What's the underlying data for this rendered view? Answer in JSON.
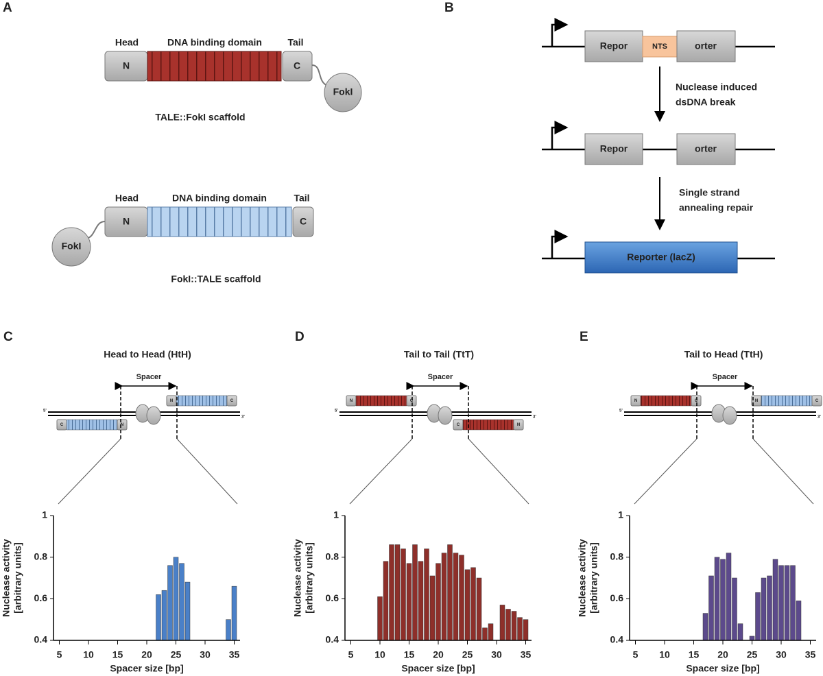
{
  "panel_a": {
    "letter": "A",
    "scaffolds": [
      {
        "head": "Head",
        "domain": "DNA binding domain",
        "tail": "Tail",
        "n": "N",
        "c": "C",
        "fok": "FokI",
        "caption": "TALE::FokI scaffold"
      },
      {
        "head": "Head",
        "domain": "DNA binding domain",
        "tail": "Tail",
        "n": "N",
        "c": "C",
        "fok": "FokI",
        "caption": "FokI::TALE scaffold"
      }
    ]
  },
  "panel_b": {
    "letter": "B",
    "steps": [
      {
        "left": "Repor",
        "middle": "NTS",
        "right": "orter"
      },
      {
        "left": "Repor",
        "right": "orter"
      },
      {
        "full": "Reporter (lacZ)"
      }
    ],
    "arrows": [
      [
        "Nuclease induced",
        "dsDNA break"
      ],
      [
        "Single strand",
        "annealing repair"
      ]
    ]
  },
  "chart_data": [
    {
      "type": "bar",
      "letter": "C",
      "title": "Head to Head (HtH)",
      "schematic": {
        "spacer": "Spacer",
        "n": "N",
        "c": "C",
        "five": "5'",
        "three": "3'",
        "domain_colors": [
          "blue",
          "blue"
        ]
      },
      "xlabel": "Spacer size [bp]",
      "ylabel": [
        "Nuclease activity",
        "[arbitrary units]"
      ],
      "x": [
        22,
        23,
        24,
        25,
        26,
        27,
        34,
        35
      ],
      "values": [
        0.62,
        0.64,
        0.76,
        0.8,
        0.77,
        0.68,
        0.5,
        0.66
      ],
      "color": "#4a80c8",
      "xlim": [
        4,
        36
      ],
      "ylim": [
        0.4,
        1
      ],
      "xticks": [
        5,
        10,
        15,
        20,
        25,
        30,
        35
      ],
      "yticks": [
        0.4,
        0.6,
        0.8,
        1
      ]
    },
    {
      "type": "bar",
      "letter": "D",
      "title": "Tail to Tail (TtT)",
      "schematic": {
        "spacer": "Spacer",
        "n": "N",
        "c": "C",
        "five": "5'",
        "three": "3'",
        "domain_colors": [
          "red",
          "red"
        ]
      },
      "xlabel": "Spacer size [bp]",
      "ylabel": [
        "Nuclease activity",
        "[arbitrary units]"
      ],
      "x": [
        10,
        11,
        12,
        13,
        14,
        15,
        16,
        17,
        18,
        19,
        20,
        21,
        22,
        23,
        24,
        25,
        26,
        27,
        28,
        29,
        31,
        32,
        33,
        34,
        35
      ],
      "values": [
        0.61,
        0.78,
        0.86,
        0.86,
        0.84,
        0.77,
        0.86,
        0.78,
        0.84,
        0.71,
        0.77,
        0.82,
        0.86,
        0.82,
        0.81,
        0.74,
        0.75,
        0.7,
        0.46,
        0.48,
        0.57,
        0.55,
        0.54,
        0.51,
        0.5
      ],
      "color": "#8e2f2a",
      "xlim": [
        4,
        36
      ],
      "ylim": [
        0.4,
        1
      ],
      "xticks": [
        5,
        10,
        15,
        20,
        25,
        30,
        35
      ],
      "yticks": [
        0.4,
        0.6,
        0.8,
        1
      ]
    },
    {
      "type": "bar",
      "letter": "E",
      "title": "Tail to Head (TtH)",
      "schematic": {
        "spacer": "Spacer",
        "n": "N",
        "c": "C",
        "five": "5'",
        "three": "3'",
        "domain_colors": [
          "red",
          "blue"
        ]
      },
      "xlabel": "Spacer size [bp]",
      "ylabel": [
        "Nuclease activity",
        "[arbitrary units]"
      ],
      "x": [
        17,
        18,
        19,
        20,
        21,
        22,
        23,
        25,
        26,
        27,
        28,
        29,
        30,
        31,
        32,
        33
      ],
      "values": [
        0.53,
        0.71,
        0.8,
        0.79,
        0.82,
        0.7,
        0.48,
        0.42,
        0.63,
        0.7,
        0.71,
        0.79,
        0.76,
        0.76,
        0.76,
        0.59
      ],
      "color": "#5c4a8c",
      "xlim": [
        4,
        36
      ],
      "ylim": [
        0.4,
        1
      ],
      "xticks": [
        5,
        10,
        15,
        20,
        25,
        30,
        35
      ],
      "yticks": [
        0.4,
        0.6,
        0.8,
        1
      ]
    }
  ]
}
